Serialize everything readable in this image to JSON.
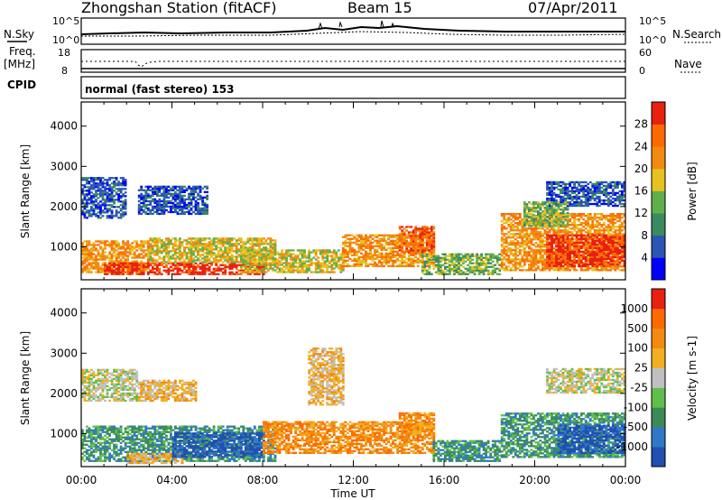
{
  "header": {
    "station": "Zhongshan Station (fitACF)",
    "beam": "Beam 15",
    "date": "07/Apr/2011"
  },
  "aux": {
    "nsky_label": "N.Sky",
    "nsearch_label": "N.Search",
    "freq_label": "Freq.",
    "freq_unit": "[MHz]",
    "nave_label": "Nave",
    "cpid_label": "CPID",
    "cpid_text": "normal (fast stereo) 153",
    "noise_ticks": [
      "10^5",
      "10^0"
    ],
    "freq_ticks": [
      "18",
      "8"
    ],
    "nave_ticks": [
      "60",
      "0"
    ]
  },
  "chart_data": [
    {
      "type": "heatmap",
      "quantity": "Power",
      "ylabel": "Slant Range [km]",
      "ylim": [
        180,
        4600
      ],
      "yticks": [
        1000,
        2000,
        3000,
        4000
      ],
      "xlim": [
        0,
        24
      ],
      "colorbar_label": "Power [dB]",
      "colorbar_ticks": [
        4,
        8,
        12,
        16,
        20,
        24,
        28
      ],
      "colorbar_colors": [
        "#0000ff",
        "#2a55b5",
        "#3c8a60",
        "#5fb04a",
        "#e6c21f",
        "#f28a12",
        "#ff6a00",
        "#e82010"
      ],
      "echo_regions": [
        {
          "t0": 0.0,
          "t1": 3.0,
          "r0": 350,
          "r1": 1150,
          "level": 5
        },
        {
          "t0": 1.0,
          "t1": 8.0,
          "r0": 300,
          "r1": 600,
          "level": 7
        },
        {
          "t0": 3.0,
          "t1": 8.5,
          "r0": 600,
          "r1": 1200,
          "level": 4
        },
        {
          "t0": 7.0,
          "t1": 11.5,
          "r0": 350,
          "r1": 900,
          "level": 4
        },
        {
          "t0": 11.5,
          "t1": 15.5,
          "r0": 500,
          "r1": 1300,
          "level": 5
        },
        {
          "t0": 14.0,
          "t1": 15.5,
          "r0": 800,
          "r1": 1500,
          "level": 6
        },
        {
          "t0": 15.0,
          "t1": 18.5,
          "r0": 300,
          "r1": 800,
          "level": 3
        },
        {
          "t0": 18.5,
          "t1": 24.0,
          "r0": 400,
          "r1": 1800,
          "level": 5
        },
        {
          "t0": 20.5,
          "t1": 24.0,
          "r0": 500,
          "r1": 1300,
          "level": 7
        },
        {
          "t0": 0.0,
          "t1": 2.0,
          "r0": 1700,
          "r1": 2700,
          "level": 1
        },
        {
          "t0": 2.5,
          "t1": 5.5,
          "r0": 1800,
          "r1": 2500,
          "level": 1
        },
        {
          "t0": 20.5,
          "t1": 24.0,
          "r0": 2000,
          "r1": 2600,
          "level": 1
        },
        {
          "t0": 19.5,
          "t1": 21.5,
          "r0": 1500,
          "r1": 2100,
          "level": 3
        }
      ]
    },
    {
      "type": "heatmap",
      "quantity": "Velocity",
      "ylabel": "Slant Range [km]",
      "ylim": [
        180,
        4600
      ],
      "yticks": [
        1000,
        2000,
        3000,
        4000
      ],
      "xlim": [
        0,
        24
      ],
      "xticks": [
        "00:00",
        "04:00",
        "08:00",
        "12:00",
        "16:00",
        "20:00",
        "00:00"
      ],
      "xlabel": "Time UT",
      "colorbar_label": "Velocity [m s-1]",
      "colorbar_ticks": [
        "1000",
        "500",
        "100",
        "25",
        "-25",
        "-100",
        "-500",
        "-1000"
      ],
      "colorbar_colors": [
        "#2050b0",
        "#2f78c8",
        "#3c8a5a",
        "#5fbf4a",
        "#c0c0c0",
        "#f2b020",
        "#f28a12",
        "#ff6a00",
        "#e82010"
      ],
      "echo_regions": [
        {
          "t0": 0.0,
          "t1": 8.5,
          "r0": 300,
          "r1": 1200,
          "level": 2
        },
        {
          "t0": 2.0,
          "t1": 4.5,
          "r0": 250,
          "r1": 500,
          "level": 5
        },
        {
          "t0": 4.0,
          "t1": 8.0,
          "r0": 400,
          "r1": 1000,
          "level": 0
        },
        {
          "t0": 8.0,
          "t1": 15.5,
          "r0": 500,
          "r1": 1300,
          "level": 6
        },
        {
          "t0": 14.0,
          "t1": 15.5,
          "r0": 900,
          "r1": 1500,
          "level": 6
        },
        {
          "t0": 15.5,
          "t1": 18.5,
          "r0": 300,
          "r1": 800,
          "level": 2
        },
        {
          "t0": 18.5,
          "t1": 24.0,
          "r0": 400,
          "r1": 1500,
          "level": 2
        },
        {
          "t0": 21.0,
          "t1": 24.0,
          "r0": 500,
          "r1": 1200,
          "level": 0
        },
        {
          "t0": 0.0,
          "t1": 2.5,
          "r0": 1800,
          "r1": 2600,
          "level": 4
        },
        {
          "t0": 2.5,
          "t1": 5.0,
          "r0": 1800,
          "r1": 2300,
          "level": 5
        },
        {
          "t0": 20.5,
          "t1": 24.0,
          "r0": 2000,
          "r1": 2600,
          "level": 4
        },
        {
          "t0": 10.0,
          "t1": 11.5,
          "r0": 1700,
          "r1": 3100,
          "level": 5
        }
      ]
    }
  ]
}
